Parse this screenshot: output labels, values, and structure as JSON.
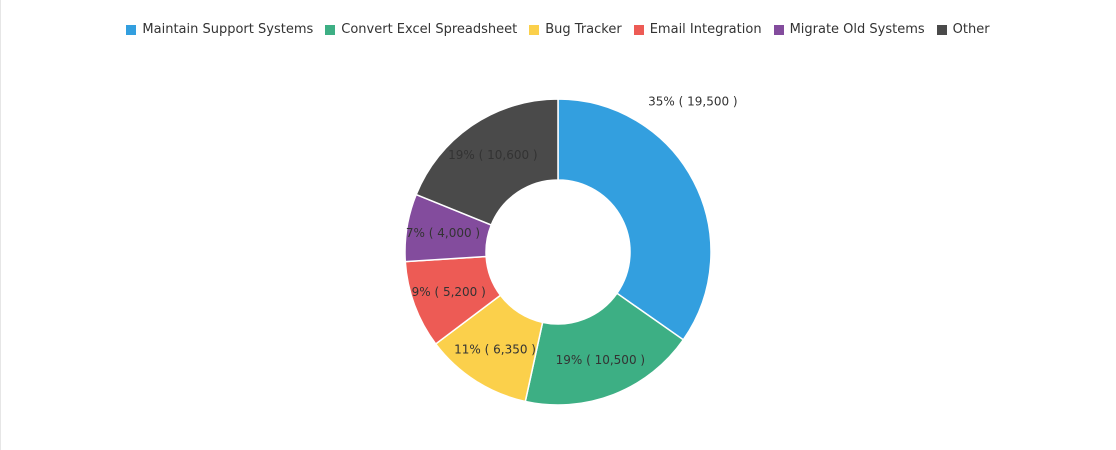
{
  "chart_data": {
    "type": "pie",
    "variant": "donut",
    "legend_position": "top",
    "categories": [
      "Maintain Support Systems",
      "Convert Excel Spreadsheet",
      "Bug Tracker",
      "Email Integration",
      "Migrate Old Systems",
      "Other"
    ],
    "values": [
      19500,
      10500,
      6350,
      5200,
      4000,
      10600
    ],
    "labels": [
      "35% ( 19,500 )",
      "19% ( 10,500 )",
      "11% ( 6,350 )",
      "9% ( 5,200 )",
      "7% ( 4,000 )",
      "19% ( 10,600 )"
    ],
    "colors": [
      "#339fdf",
      "#3daf84",
      "#fbd04b",
      "#ed5b55",
      "#834c9d",
      "#4a4a4a"
    ]
  }
}
